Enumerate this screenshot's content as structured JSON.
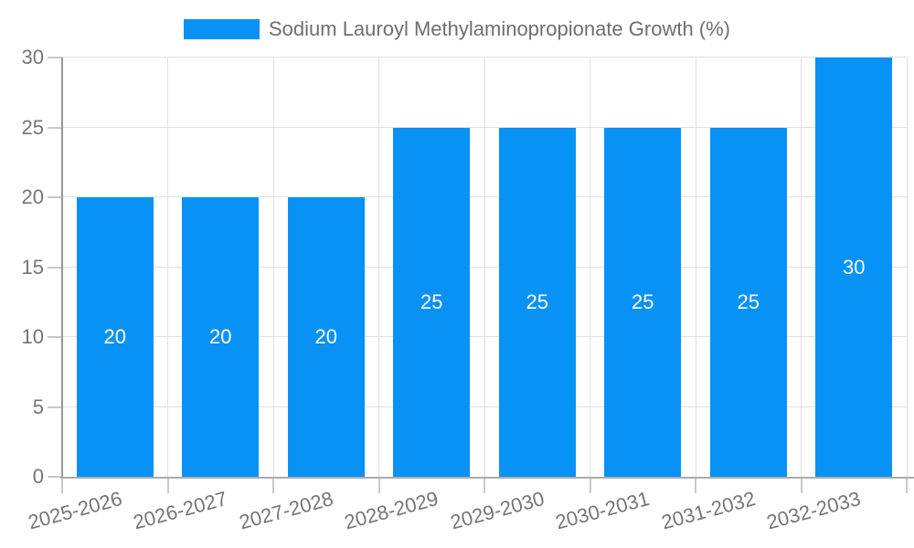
{
  "legend": {
    "label": "Sodium Lauroyl Methylaminopropionate Growth (%)"
  },
  "colors": {
    "bar": "#0992f5",
    "bar_value_label": "#ffffff",
    "legend_text": "#6e6e6e",
    "axis_text": "#757575",
    "gridline": "#e0e0e0",
    "axis_line": "#a0a0a0"
  },
  "chart_data": {
    "type": "bar",
    "title": "Sodium Lauroyl Methylaminopropionate Growth (%)",
    "categories": [
      "2025-2026",
      "2026-2027",
      "2027-2028",
      "2028-2029",
      "2029-2030",
      "2030-2031",
      "2031-2032",
      "2032-2033"
    ],
    "values": [
      20,
      20,
      20,
      25,
      25,
      25,
      25,
      30
    ],
    "bar_value_labels": [
      "20",
      "20",
      "20",
      "25",
      "25",
      "25",
      "25",
      "30"
    ],
    "xlabel": "",
    "ylabel": "",
    "ylim": [
      0,
      30
    ],
    "yticks": [
      0,
      5,
      10,
      15,
      20,
      25,
      30
    ],
    "grid": true,
    "legend_position": "top",
    "x_tick_label_rotation_deg": -15
  }
}
